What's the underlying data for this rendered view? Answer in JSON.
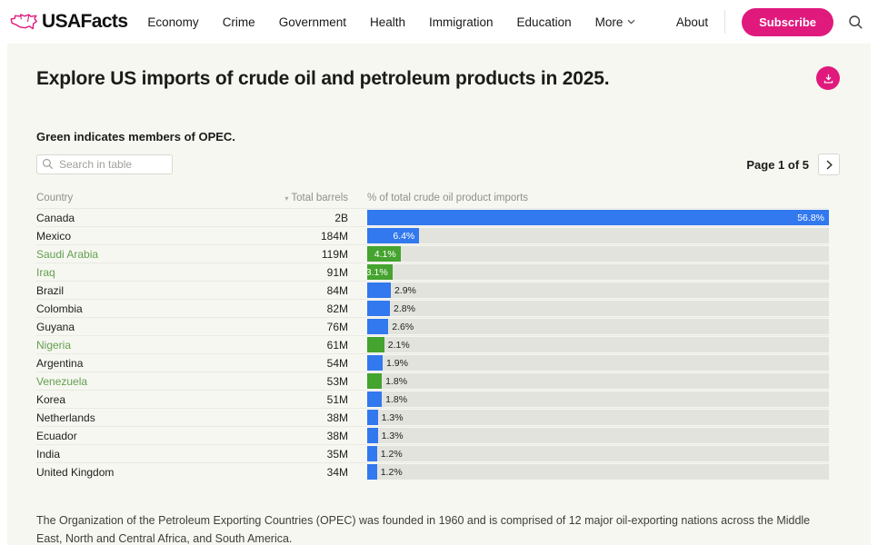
{
  "header": {
    "brand": "USAFacts",
    "nav_items": [
      "Economy",
      "Crime",
      "Government",
      "Health",
      "Immigration",
      "Education"
    ],
    "more_label": "More",
    "about_label": "About",
    "subscribe_label": "Subscribe"
  },
  "page": {
    "title": "Explore US imports of crude oil and petroleum products in 2025.",
    "subtitle": "Green indicates members of OPEC.",
    "search_placeholder": "Search in table",
    "pagination_label": "Page 1 of 5",
    "footnote": "The Organization of the Petroleum Exporting Countries (OPEC) was founded in 1960 and is comprised of 12 major oil-exporting nations across the Middle East, North and Central Africa, and South America."
  },
  "table": {
    "columns": {
      "country": "Country",
      "barrels": "Total barrels",
      "share": "% of total crude oil product imports"
    },
    "sort_icon": "▾",
    "rows": [
      {
        "country": "Canada",
        "barrels": "2B",
        "pct": 56.8,
        "label": "56.8%",
        "opec": false,
        "inside": true
      },
      {
        "country": "Mexico",
        "barrels": "184M",
        "pct": 6.4,
        "label": "6.4%",
        "opec": false,
        "inside": true
      },
      {
        "country": "Saudi Arabia",
        "barrels": "119M",
        "pct": 4.1,
        "label": "4.1%",
        "opec": true,
        "inside": true
      },
      {
        "country": "Iraq",
        "barrels": "91M",
        "pct": 3.1,
        "label": "3.1%",
        "opec": true,
        "inside": true
      },
      {
        "country": "Brazil",
        "barrels": "84M",
        "pct": 2.9,
        "label": "2.9%",
        "opec": false,
        "inside": false
      },
      {
        "country": "Colombia",
        "barrels": "82M",
        "pct": 2.8,
        "label": "2.8%",
        "opec": false,
        "inside": false
      },
      {
        "country": "Guyana",
        "barrels": "76M",
        "pct": 2.6,
        "label": "2.6%",
        "opec": false,
        "inside": false
      },
      {
        "country": "Nigeria",
        "barrels": "61M",
        "pct": 2.1,
        "label": "2.1%",
        "opec": true,
        "inside": false
      },
      {
        "country": "Argentina",
        "barrels": "54M",
        "pct": 1.9,
        "label": "1.9%",
        "opec": false,
        "inside": false
      },
      {
        "country": "Venezuela",
        "barrels": "53M",
        "pct": 1.8,
        "label": "1.8%",
        "opec": true,
        "inside": false
      },
      {
        "country": "Korea",
        "barrels": "51M",
        "pct": 1.8,
        "label": "1.8%",
        "opec": false,
        "inside": false
      },
      {
        "country": "Netherlands",
        "barrels": "38M",
        "pct": 1.3,
        "label": "1.3%",
        "opec": false,
        "inside": false
      },
      {
        "country": "Ecuador",
        "barrels": "38M",
        "pct": 1.3,
        "label": "1.3%",
        "opec": false,
        "inside": false
      },
      {
        "country": "India",
        "barrels": "35M",
        "pct": 1.2,
        "label": "1.2%",
        "opec": false,
        "inside": false
      },
      {
        "country": "United Kingdom",
        "barrels": "34M",
        "pct": 1.2,
        "label": "1.2%",
        "opec": false,
        "inside": false
      }
    ]
  },
  "chart_data": {
    "type": "bar",
    "orientation": "horizontal",
    "title": "% of total crude oil product imports",
    "categories": [
      "Canada",
      "Mexico",
      "Saudi Arabia",
      "Iraq",
      "Brazil",
      "Colombia",
      "Guyana",
      "Nigeria",
      "Argentina",
      "Venezuela",
      "Korea",
      "Netherlands",
      "Ecuador",
      "India",
      "United Kingdom"
    ],
    "values": [
      56.8,
      6.4,
      4.1,
      3.1,
      2.9,
      2.8,
      2.6,
      2.1,
      1.9,
      1.8,
      1.8,
      1.3,
      1.3,
      1.2,
      1.2
    ],
    "total_barrels": [
      "2B",
      "184M",
      "119M",
      "91M",
      "84M",
      "82M",
      "76M",
      "61M",
      "54M",
      "53M",
      "51M",
      "38M",
      "38M",
      "35M",
      "34M"
    ],
    "opec_members_highlighted": [
      "Saudi Arabia",
      "Iraq",
      "Nigeria",
      "Venezuela"
    ],
    "xlim": [
      0,
      56.8
    ],
    "grid": false,
    "legend": "none (color-coded: green = OPEC member, blue = non-OPEC)"
  },
  "colors": {
    "brand_pink": "#e0197d",
    "bar_blue": "#3278ee",
    "bar_green": "#45a32f",
    "opec_text_green": "#62a04e",
    "card_bg": "#f7f7f2",
    "track_bg": "#e3e3de"
  }
}
